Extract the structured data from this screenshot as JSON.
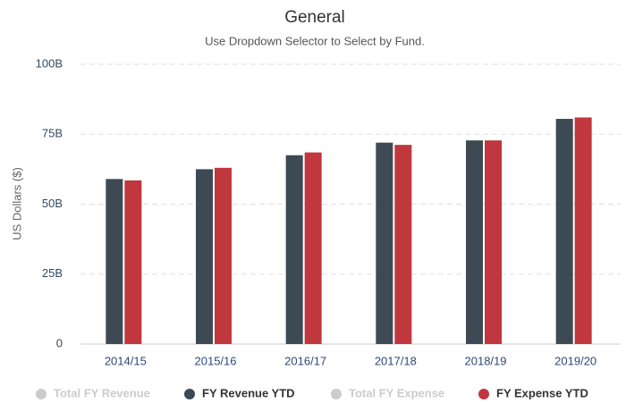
{
  "chart_data": {
    "type": "bar",
    "title": "General",
    "subtitle": "Use Dropdown Selector to Select by Fund.",
    "y_label": "US Dollars ($)",
    "categories": [
      "2014/15",
      "2015/16",
      "2016/17",
      "2017/18",
      "2018/19",
      "2019/20"
    ],
    "series": [
      {
        "name": "Total FY Revenue",
        "color": "#cccccc",
        "visible": false,
        "values": [
          null,
          null,
          null,
          null,
          null,
          null
        ]
      },
      {
        "name": "FY Revenue YTD",
        "color": "#3d4a54",
        "visible": true,
        "values": [
          59,
          62.5,
          67.5,
          72,
          72.8,
          80.5
        ]
      },
      {
        "name": "Total FY Expense",
        "color": "#cccccc",
        "visible": false,
        "values": [
          null,
          null,
          null,
          null,
          null,
          null
        ]
      },
      {
        "name": "FY Expense YTD",
        "color": "#c0373e",
        "visible": true,
        "values": [
          58.5,
          63,
          68.5,
          71.2,
          72.8,
          81
        ]
      }
    ],
    "ylim": [
      0,
      100
    ],
    "yticks": [
      0,
      {
        "value": 25,
        "label": "25B"
      },
      {
        "value": 50,
        "label": "50B"
      },
      {
        "value": 75,
        "label": "75B"
      },
      {
        "value": 100,
        "label": "100B"
      }
    ],
    "grid": true,
    "legend": "bottom"
  }
}
